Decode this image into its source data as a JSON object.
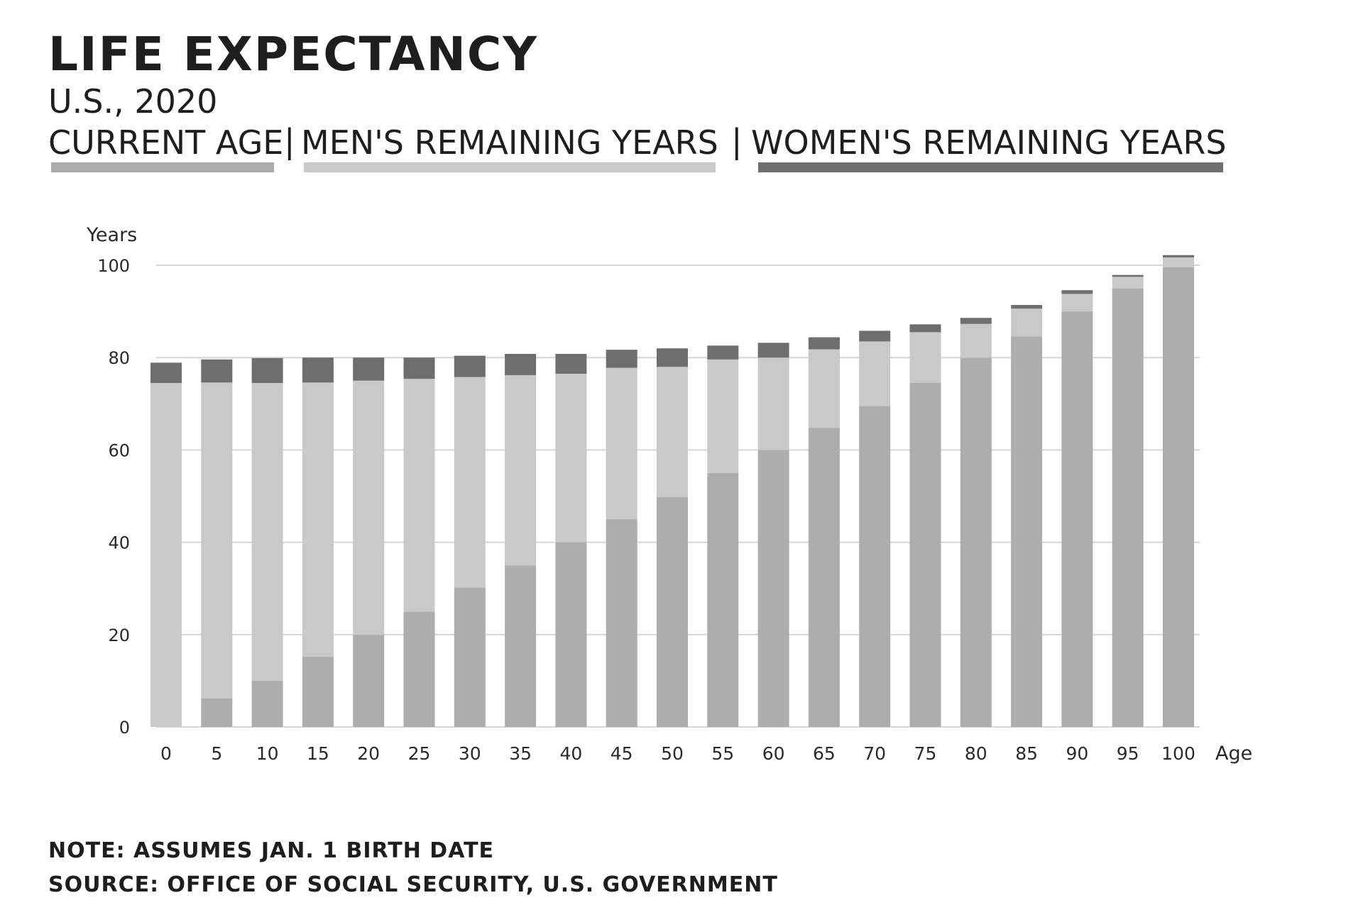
{
  "header": {
    "title": "LIFE EXPECTANCY",
    "subtitle": "U.S., 2020",
    "separator": "|"
  },
  "footer": {
    "note": "NOTE: ASSUMES JAN. 1 BIRTH DATE",
    "source": "SOURCE: OFFICE OF SOCIAL SECURITY, U.S. GOVERNMENT"
  },
  "chart_data": {
    "type": "bar",
    "stacked": true,
    "title": "LIFE EXPECTANCY",
    "subtitle": "U.S., 2020",
    "xlabel": "Age",
    "ylabel": "Years",
    "ylim": [
      0,
      100
    ],
    "yticks": [
      0,
      20,
      40,
      60,
      80,
      100
    ],
    "grid": true,
    "legend_placement": "top",
    "categories": [
      "0",
      "5",
      "10",
      "15",
      "20",
      "25",
      "30",
      "35",
      "40",
      "45",
      "50",
      "55",
      "60",
      "65",
      "70",
      "75",
      "80",
      "85",
      "90",
      "95",
      "100"
    ],
    "series": [
      {
        "name": "CURRENT AGE",
        "color": "#adadad",
        "values": [
          0,
          6.2,
          10,
          15.2,
          20,
          25,
          30.2,
          35,
          40,
          45,
          49.8,
          55,
          60,
          64.8,
          69.5,
          74.5,
          80,
          84.6,
          90,
          95,
          99.6
        ]
      },
      {
        "name": "MEN'S REMAINING YEARS",
        "color": "#c9c9c9",
        "values": [
          74.5,
          68.4,
          64.5,
          59.4,
          55,
          50.4,
          45.6,
          41.2,
          36.5,
          32.8,
          28.2,
          24.6,
          20,
          17,
          14,
          11,
          7.3,
          6,
          3.8,
          2.5,
          2.1
        ]
      },
      {
        "name": "WOMEN'S REMAINING YEARS",
        "color": "#6e6e6e",
        "values": [
          4.4,
          5,
          5.4,
          5.4,
          5,
          4.6,
          4.6,
          4.6,
          4.3,
          3.9,
          4,
          3,
          3.2,
          2.6,
          2.3,
          1.7,
          1.3,
          0.8,
          0.8,
          0.4,
          0.5
        ]
      }
    ]
  }
}
